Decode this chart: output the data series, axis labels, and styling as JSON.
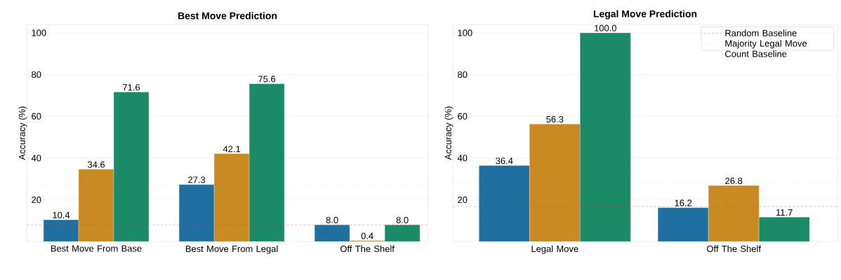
{
  "chart_data": [
    {
      "type": "bar",
      "title": "Best Move Prediction",
      "ylabel": "Accuracy (%)",
      "categories": [
        "Best Move From Base",
        "Best Move From Legal",
        "Off The Shelf"
      ],
      "series": [
        {
          "color": "#1f6fa0",
          "values": [
            10.4,
            27.3,
            8.0
          ],
          "value_labels": [
            "10.4",
            "27.3",
            "8.0"
          ]
        },
        {
          "color": "#c98a22",
          "values": [
            34.6,
            42.1,
            0.4
          ],
          "value_labels": [
            "34.6",
            "42.1",
            "0.4"
          ]
        },
        {
          "color": "#1b8a66",
          "values": [
            71.6,
            75.6,
            8.0
          ],
          "value_labels": [
            "71.6",
            "75.6",
            "8.0"
          ]
        }
      ],
      "ylim": [
        0,
        104
      ],
      "yticks": [
        20,
        40,
        60,
        80,
        100
      ],
      "grid": "y",
      "legend": false,
      "ref_lines": [
        {
          "axis": "y",
          "value": 8.0,
          "color": "#e8443a",
          "line_style": "dashed"
        },
        {
          "axis": "y",
          "value": 27.2,
          "color": "#c77dd6",
          "line_style": "dotted"
        }
      ]
    },
    {
      "type": "bar",
      "title": "Legal Move Prediction",
      "ylabel": "Accuracy (%)",
      "categories": [
        "Legal Move",
        "Off The Shelf"
      ],
      "series": [
        {
          "color": "#1f6fa0",
          "values": [
            36.4,
            16.2
          ],
          "value_labels": [
            "36.4",
            "16.2"
          ]
        },
        {
          "color": "#c98a22",
          "values": [
            56.3,
            26.8
          ],
          "value_labels": [
            "56.3",
            "26.8"
          ]
        },
        {
          "color": "#1b8a66",
          "values": [
            100.0,
            11.7
          ],
          "value_labels": [
            "100.0",
            "11.7"
          ]
        }
      ],
      "ylim": [
        0,
        104
      ],
      "yticks": [
        20,
        40,
        60,
        80,
        100
      ],
      "grid": "y",
      "legend": "top right",
      "ref_lines": [
        {
          "axis": "y",
          "value": 16.8,
          "color": "#e8443a",
          "line_style": "dashed",
          "label": "Random Baseline"
        },
        {
          "axis": "y",
          "value": 27.6,
          "color": "#c77dd6",
          "line_style": "dotted",
          "label": "Majority Legal Move Count Baseline"
        }
      ]
    }
  ]
}
